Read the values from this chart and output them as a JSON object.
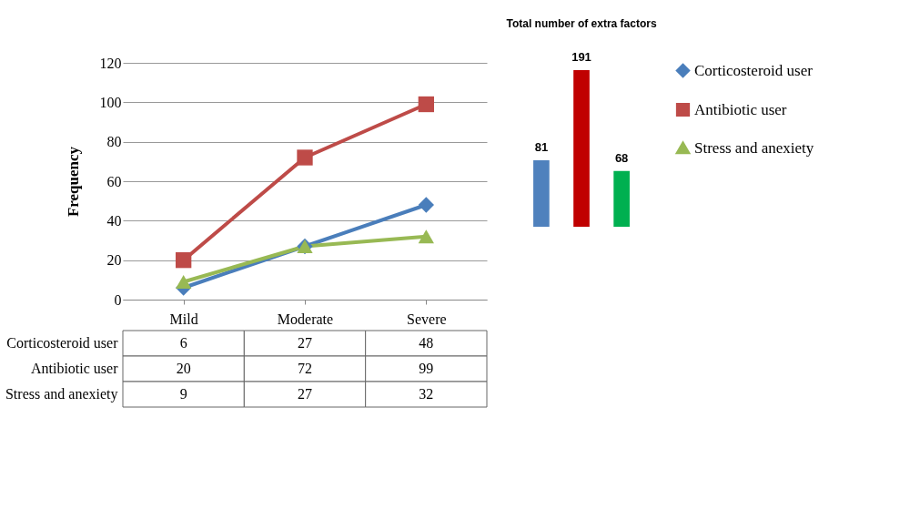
{
  "chart_data": [
    {
      "type": "line",
      "ylabel": "Frequency",
      "categories": [
        "Mild",
        "Moderate",
        "Severe"
      ],
      "series": [
        {
          "name": "Corticosteroid user",
          "color": "#4a7ebb",
          "marker": "diamond",
          "values": [
            6,
            27,
            48
          ]
        },
        {
          "name": "Antibiotic user",
          "color": "#be4b48",
          "marker": "square",
          "values": [
            20,
            72,
            99
          ]
        },
        {
          "name": "Stress and anexiety",
          "color": "#98b954",
          "marker": "triangle",
          "values": [
            9,
            27,
            32
          ]
        }
      ],
      "ylim": [
        0,
        120
      ],
      "yticks": [
        0,
        20,
        40,
        60,
        80,
        100,
        120
      ],
      "grid": "y",
      "legend": "right",
      "data_labels": true
    },
    {
      "type": "bar",
      "title": "Total number of extra factors",
      "categories": [
        null,
        null,
        null
      ],
      "values": [
        81,
        191,
        68
      ],
      "colors": [
        "#4f81bd",
        "#c00000",
        "#00b050"
      ],
      "data_labels": true
    }
  ]
}
